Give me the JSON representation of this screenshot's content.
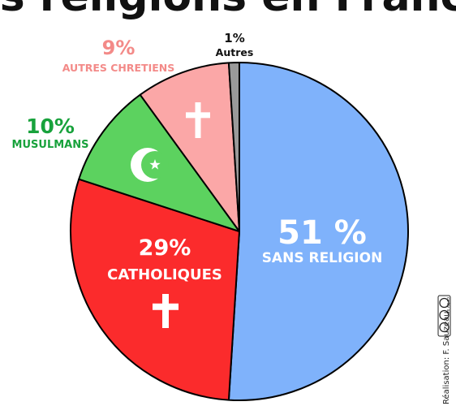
{
  "chart_data": {
    "type": "pie",
    "title": "Les religions en France",
    "slices": [
      {
        "pct_label": "51 %",
        "label": "SANS RELIGION",
        "value": 51,
        "color": "#7fb2fb",
        "icon": "none"
      },
      {
        "pct_label": "29%",
        "label": "CATHOLIQUES",
        "value": 29,
        "color": "#fb2b2c",
        "icon": "cross-icon"
      },
      {
        "pct_label": "10%",
        "label": "MUSULMANS",
        "value": 10,
        "color": "#5cd25f",
        "icon": "crescent-star-icon"
      },
      {
        "pct_label": "9%",
        "label": "AUTRES CHRETIENS",
        "value": 9,
        "color": "#fba7a7",
        "icon": "cross-icon"
      },
      {
        "pct_label": "1%",
        "label": "Autres",
        "value": 1,
        "color": "#9a9a9a",
        "icon": "none"
      }
    ],
    "label_colors": {
      "sans_religion": "#ffffff",
      "catholiques": "#ffffff",
      "musulmans": "#18a23c",
      "autres_chretiens": "#f38a88",
      "autres": "#111111"
    }
  },
  "credit": "Réalisation: F. Sauzeau",
  "license_badge": "cc by sa"
}
